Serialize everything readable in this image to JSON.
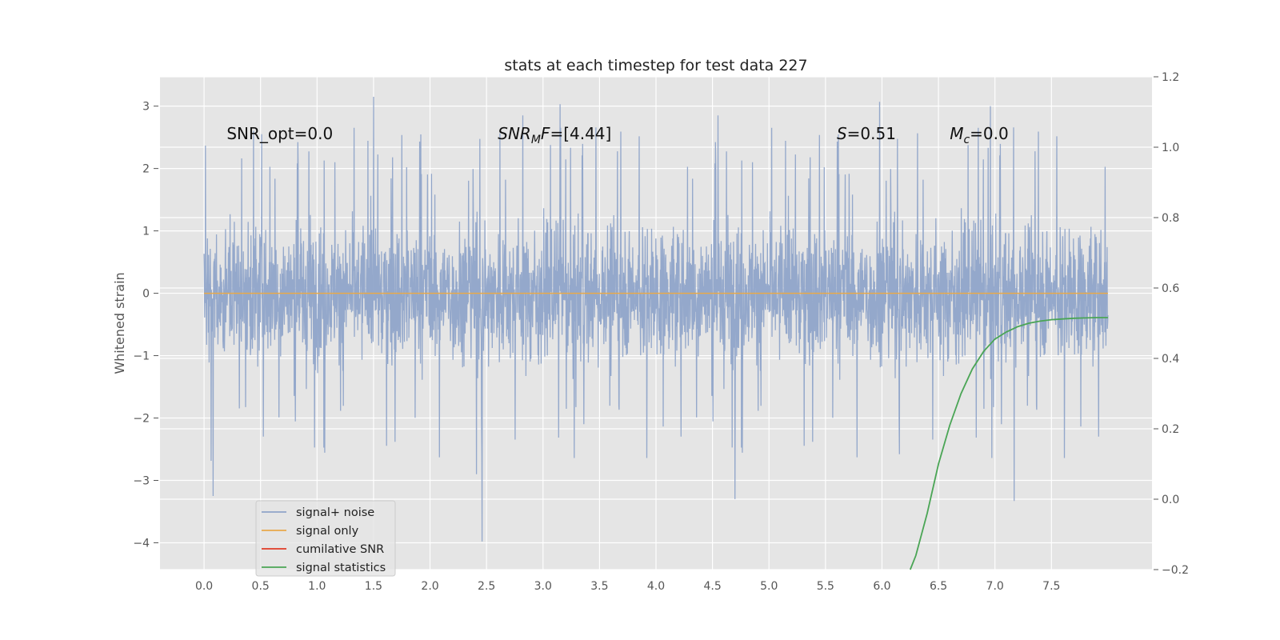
{
  "chart_data": {
    "type": "line",
    "title": "stats at each timestep for test data 227",
    "ylabel": "Whitened strain",
    "xlabel": "",
    "xlim": [
      -0.39,
      8.39
    ],
    "ylim": [
      -4.43,
      3.47
    ],
    "y2lim": [
      -0.2,
      1.2
    ],
    "x_ticks": [
      "0.0",
      "0.5",
      "1.0",
      "1.5",
      "2.0",
      "2.5",
      "3.0",
      "3.5",
      "4.0",
      "4.5",
      "5.0",
      "5.5",
      "6.0",
      "6.5",
      "7.0",
      "7.5"
    ],
    "y_ticks": [
      "3",
      "2",
      "1",
      "0",
      "−1",
      "−2",
      "−3",
      "−4"
    ],
    "y2_ticks": [
      "1.2",
      "1.0",
      "0.8",
      "0.6",
      "0.4",
      "0.2",
      "0.0",
      "−0.2"
    ],
    "grid": true,
    "legend_position": "lower-left",
    "annotations": [
      {
        "text": "SNR_opt=0.0",
        "x": 0.2,
        "y": 2.47
      },
      {
        "text_parts": [
          "SNR",
          "M",
          "F=[4.44]"
        ],
        "x": 2.6,
        "y": 2.47
      },
      {
        "text_parts": [
          "S",
          "=0.51"
        ],
        "x": 5.6,
        "y": 2.47
      },
      {
        "text_parts": [
          "M",
          "c",
          "=0.0"
        ],
        "x": 6.6,
        "y": 2.47
      }
    ],
    "series": [
      {
        "name": "signal+ noise",
        "color": "#8fa4c9",
        "x_range": [
          0.0,
          8.0
        ],
        "envelope": {
          "typical": 1.5,
          "extreme_high": 3.15,
          "extreme_low": -3.98
        },
        "peaks": [
          {
            "x": 0.08,
            "y": -3.25
          },
          {
            "x": 1.5,
            "y": 3.15
          },
          {
            "x": 2.46,
            "y": -3.98
          },
          {
            "x": 3.15,
            "y": 3.03
          },
          {
            "x": 4.7,
            "y": -3.3
          },
          {
            "x": 5.98,
            "y": 3.07
          },
          {
            "x": 6.96,
            "y": 3.0
          },
          {
            "x": 7.17,
            "y": -3.33
          },
          {
            "x": 2.82,
            "y": 2.85
          },
          {
            "x": 4.55,
            "y": 2.85
          },
          {
            "x": 0.51,
            "y": 2.55
          },
          {
            "x": 2.41,
            "y": -2.9
          }
        ]
      },
      {
        "name": "signal only",
        "color": "#e8a94a",
        "x": [
          0.0,
          8.0
        ],
        "y": [
          0.0,
          0.0
        ]
      },
      {
        "name": "cumilative SNR",
        "color": "#e03a25",
        "x": [],
        "y": []
      },
      {
        "name": "signal statistics",
        "color": "#4aa555",
        "axis": "right",
        "x": [
          6.25,
          6.3,
          6.4,
          6.5,
          6.6,
          6.7,
          6.8,
          6.9,
          7.0,
          7.1,
          7.2,
          7.3,
          7.4,
          7.5,
          7.6,
          7.7,
          7.8,
          7.9,
          8.0
        ],
        "y": [
          -0.2,
          -0.16,
          -0.04,
          0.1,
          0.21,
          0.3,
          0.37,
          0.42,
          0.455,
          0.475,
          0.49,
          0.5,
          0.506,
          0.51,
          0.512,
          0.514,
          0.515,
          0.516,
          0.516
        ]
      }
    ]
  },
  "legend": {
    "items": [
      {
        "label": "signal+ noise",
        "color": "#8fa4c9"
      },
      {
        "label": "signal only",
        "color": "#e8a94a"
      },
      {
        "label": "cumilative SNR",
        "color": "#e03a25"
      },
      {
        "label": "signal statistics",
        "color": "#4aa555"
      }
    ]
  }
}
